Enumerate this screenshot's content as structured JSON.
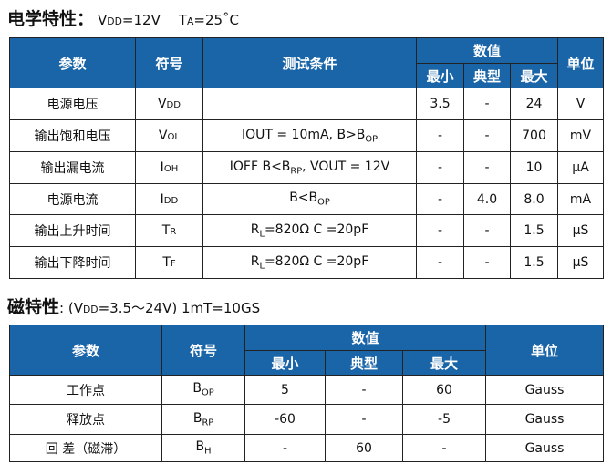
{
  "electrical": {
    "title": "电学特性：",
    "cond1_main": "V",
    "cond1_sub": "DD",
    "cond1_rest": "=12V",
    "cond2_main": "T",
    "cond2_sub": "A",
    "cond2_rest": "=25˚C",
    "headers": {
      "param": "参数",
      "symbol": "符号",
      "condition": "测试条件",
      "values": "数值",
      "min": "最小",
      "typ": "典型",
      "max": "最大",
      "unit": "单位"
    },
    "rows": [
      {
        "param": "电源电压",
        "sym": "V",
        "sym_sub": "DD",
        "cond": "",
        "cond_sub": "",
        "cond_rest": "",
        "min": "3.5",
        "typ": "-",
        "max": "24",
        "unit": "V"
      },
      {
        "param": "输出饱和电压",
        "sym": "V",
        "sym_sub": "OL",
        "cond": "IOUT = 10mA, B>B",
        "cond_sub": "OP",
        "cond_rest": "",
        "min": "-",
        "typ": "-",
        "max": "700",
        "unit": "mV"
      },
      {
        "param": "输出漏电流",
        "sym": "I",
        "sym_sub": "OH",
        "cond": "IOFF B<B",
        "cond_sub": "RP",
        "cond_rest": ", VOUT = 12V",
        "min": "-",
        "typ": "-",
        "max": "10",
        "unit": "μA"
      },
      {
        "param": "电源电流",
        "sym": "I",
        "sym_sub": "DD",
        "cond": "B<B",
        "cond_sub": "OP",
        "cond_rest": "",
        "min": "-",
        "typ": "4.0",
        "max": "8.0",
        "unit": "mA"
      },
      {
        "param": "输出上升时间",
        "sym": "T",
        "sym_sub": "R",
        "cond": "R",
        "cond_sub": "L",
        "cond_rest": "=820Ω   C =20pF",
        "min": "-",
        "typ": "-",
        "max": "1.5",
        "unit": "μS"
      },
      {
        "param": "输出下降时间",
        "sym": "T",
        "sym_sub": "F",
        "cond": "R",
        "cond_sub": "L",
        "cond_rest": "=820Ω   C =20pF",
        "min": "-",
        "typ": "-",
        "max": "1.5",
        "unit": "μS"
      }
    ]
  },
  "magnetic": {
    "title": "磁特性",
    "cond": ": (V",
    "cond_sub": "DD",
    "cond_rest": "=3.5～24V)  1mT=10GS",
    "headers": {
      "param": "参数",
      "symbol": "符号",
      "values": "数值",
      "min": "最小",
      "typ": "典型",
      "max": "最大",
      "unit": "单位"
    },
    "rows": [
      {
        "param": "工作点",
        "sym": "B",
        "sym_sub": "OP",
        "min": "5",
        "typ": "-",
        "max": "60",
        "unit": "Gauss"
      },
      {
        "param": "释放点",
        "sym": "B",
        "sym_sub": "RP",
        "min": "-60",
        "typ": "-",
        "max": "-5",
        "unit": "Gauss"
      },
      {
        "param": "回   差（磁滞）",
        "sym": "B",
        "sym_sub": "H",
        "min": "-",
        "typ": "60",
        "max": "-",
        "unit": "Gauss"
      }
    ]
  },
  "colors": {
    "header_bg": "#1a64a8"
  }
}
